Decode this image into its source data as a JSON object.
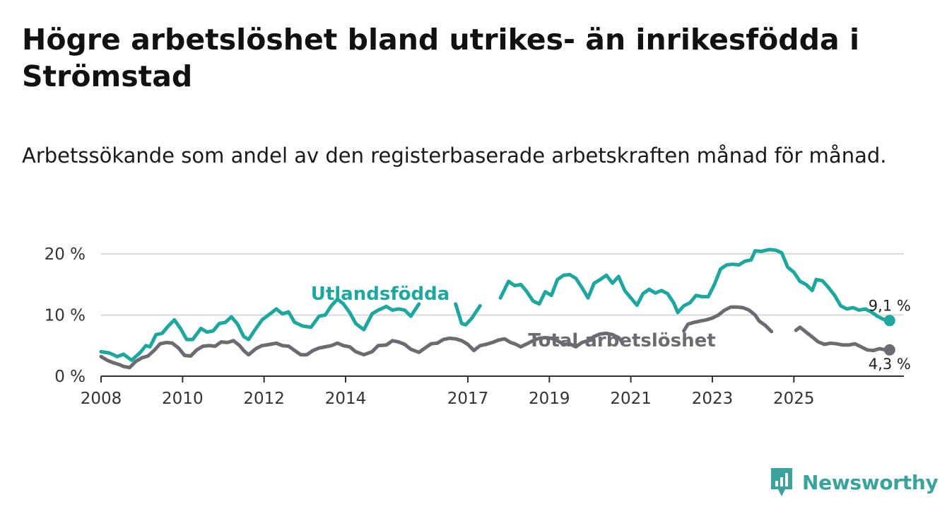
{
  "header": {
    "title": "Högre arbetslöshet bland utrikes- än inrikesfödda i Strömstad",
    "subtitle": "Arbetssökande som andel av den registerbaserade arbetskraften månad för månad."
  },
  "brand": {
    "name": "Newsworthy"
  },
  "colors": {
    "utlandsfodda": "#1ea79c",
    "total": "#6b6b70",
    "grid": "#d9d9d9",
    "axis": "#333333"
  },
  "chart_data": {
    "type": "line",
    "title": "Högre arbetslöshet bland utrikes- än inrikesfödda i Strömstad",
    "subtitle": "Arbetssökande som andel av den registerbaserade arbetskraften månad för månad.",
    "xlabel": "",
    "ylabel": "",
    "xlim": [
      2008,
      2027.7
    ],
    "ylim": [
      0,
      20
    ],
    "y_ticks": [
      0,
      10,
      20
    ],
    "y_tick_labels": [
      "0 %",
      "10 %",
      "20 %"
    ],
    "x_ticks": [
      2008,
      2010,
      2012,
      2014,
      2017,
      2019,
      2021,
      2023,
      2025
    ],
    "x_tick_labels": [
      "2008",
      "2010",
      "2012",
      "2014",
      "2017",
      "2019",
      "2021",
      "2023",
      "2025"
    ],
    "grid": true,
    "series": [
      {
        "name": "Utlandsfödda",
        "label": "Utlandsfödda",
        "end_label": "9,1 %",
        "segments": [
          [
            [
              2008.0,
              4.0
            ],
            [
              2008.2,
              3.8
            ],
            [
              2008.4,
              3.2
            ],
            [
              2008.55,
              3.6
            ],
            [
              2008.75,
              2.6
            ],
            [
              2008.95,
              3.8
            ],
            [
              2009.1,
              5.0
            ],
            [
              2009.2,
              4.8
            ],
            [
              2009.35,
              6.8
            ],
            [
              2009.5,
              7.0
            ],
            [
              2009.65,
              8.2
            ],
            [
              2009.8,
              9.2
            ],
            [
              2009.95,
              7.8
            ],
            [
              2010.1,
              6.0
            ],
            [
              2010.25,
              6.0
            ],
            [
              2010.45,
              7.8
            ],
            [
              2010.6,
              7.2
            ],
            [
              2010.75,
              7.4
            ],
            [
              2010.9,
              8.6
            ],
            [
              2011.05,
              8.8
            ],
            [
              2011.2,
              9.7
            ],
            [
              2011.35,
              8.5
            ],
            [
              2011.5,
              6.5
            ],
            [
              2011.62,
              6.0
            ],
            [
              2011.8,
              7.8
            ],
            [
              2011.95,
              9.2
            ],
            [
              2012.15,
              10.2
            ],
            [
              2012.3,
              11.0
            ],
            [
              2012.45,
              10.2
            ],
            [
              2012.6,
              10.5
            ],
            [
              2012.75,
              8.8
            ],
            [
              2012.95,
              8.2
            ],
            [
              2013.15,
              8.0
            ],
            [
              2013.35,
              9.8
            ],
            [
              2013.5,
              10.0
            ],
            [
              2013.65,
              11.5
            ],
            [
              2013.8,
              12.6
            ],
            [
              2013.95,
              11.8
            ],
            [
              2014.1,
              10.4
            ],
            [
              2014.25,
              8.6
            ],
            [
              2014.45,
              7.6
            ],
            [
              2014.65,
              10.2
            ],
            [
              2014.8,
              10.8
            ],
            [
              2015.0,
              11.4
            ],
            [
              2015.15,
              10.8
            ],
            [
              2015.3,
              11.0
            ],
            [
              2015.45,
              10.8
            ],
            [
              2015.6,
              9.8
            ],
            [
              2015.8,
              11.8
            ]
          ],
          [
            [
              2016.7,
              11.8
            ],
            [
              2016.85,
              8.6
            ],
            [
              2016.95,
              8.4
            ],
            [
              2017.1,
              9.5
            ],
            [
              2017.3,
              11.5
            ]
          ],
          [
            [
              2017.8,
              12.8
            ],
            [
              2018.0,
              15.5
            ],
            [
              2018.15,
              14.8
            ],
            [
              2018.3,
              15.0
            ],
            [
              2018.45,
              13.8
            ],
            [
              2018.6,
              12.3
            ],
            [
              2018.75,
              11.8
            ],
            [
              2018.9,
              13.8
            ],
            [
              2019.05,
              13.2
            ],
            [
              2019.2,
              15.8
            ],
            [
              2019.35,
              16.5
            ],
            [
              2019.5,
              16.6
            ],
            [
              2019.65,
              16.0
            ],
            [
              2019.8,
              14.5
            ],
            [
              2019.95,
              12.8
            ],
            [
              2020.1,
              15.2
            ],
            [
              2020.25,
              15.8
            ],
            [
              2020.4,
              16.5
            ],
            [
              2020.55,
              15.2
            ],
            [
              2020.7,
              16.3
            ],
            [
              2020.85,
              14.0
            ],
            [
              2021.0,
              12.8
            ],
            [
              2021.15,
              11.6
            ],
            [
              2021.3,
              13.5
            ],
            [
              2021.45,
              14.2
            ],
            [
              2021.6,
              13.6
            ],
            [
              2021.75,
              14.0
            ],
            [
              2021.9,
              13.5
            ],
            [
              2022.05,
              12.0
            ],
            [
              2022.15,
              10.4
            ],
            [
              2022.3,
              11.5
            ],
            [
              2022.45,
              12.0
            ],
            [
              2022.6,
              13.2
            ],
            [
              2022.75,
              13.0
            ],
            [
              2022.9,
              13.0
            ],
            [
              2023.05,
              15.0
            ],
            [
              2023.2,
              17.5
            ],
            [
              2023.35,
              18.2
            ],
            [
              2023.5,
              18.3
            ],
            [
              2023.65,
              18.2
            ],
            [
              2023.8,
              18.8
            ],
            [
              2023.95,
              19.0
            ],
            [
              2024.05,
              20.5
            ],
            [
              2024.2,
              20.4
            ],
            [
              2024.4,
              20.7
            ],
            [
              2024.55,
              20.6
            ],
            [
              2024.7,
              20.2
            ],
            [
              2024.85,
              17.8
            ],
            [
              2025.0,
              17.0
            ],
            [
              2025.15,
              15.5
            ],
            [
              2025.3,
              15.0
            ],
            [
              2025.45,
              14.0
            ],
            [
              2025.55,
              15.8
            ],
            [
              2025.7,
              15.6
            ],
            [
              2025.85,
              14.5
            ],
            [
              2026.0,
              13.2
            ],
            [
              2026.15,
              11.5
            ],
            [
              2026.3,
              11.0
            ],
            [
              2026.45,
              11.2
            ],
            [
              2026.6,
              10.8
            ],
            [
              2026.75,
              11.0
            ],
            [
              2026.9,
              10.5
            ],
            [
              2027.05,
              9.8
            ],
            [
              2027.2,
              9.3
            ],
            [
              2027.35,
              9.1
            ]
          ]
        ]
      },
      {
        "name": "Total arbetslöshet",
        "label": "Total arbetslöshet",
        "end_label": "4,3 %",
        "segments": [
          [
            [
              2008.0,
              3.2
            ],
            [
              2008.15,
              2.6
            ],
            [
              2008.3,
              2.2
            ],
            [
              2008.45,
              1.9
            ],
            [
              2008.55,
              1.6
            ],
            [
              2008.7,
              1.4
            ],
            [
              2008.85,
              2.4
            ],
            [
              2009.0,
              3.0
            ],
            [
              2009.15,
              3.3
            ],
            [
              2009.3,
              4.2
            ],
            [
              2009.45,
              5.3
            ],
            [
              2009.6,
              5.5
            ],
            [
              2009.75,
              5.4
            ],
            [
              2009.9,
              4.6
            ],
            [
              2010.05,
              3.4
            ],
            [
              2010.2,
              3.3
            ],
            [
              2010.35,
              4.3
            ],
            [
              2010.5,
              4.9
            ],
            [
              2010.65,
              5.0
            ],
            [
              2010.8,
              4.9
            ],
            [
              2010.95,
              5.6
            ],
            [
              2011.1,
              5.5
            ],
            [
              2011.25,
              5.8
            ],
            [
              2011.4,
              5.0
            ],
            [
              2011.5,
              4.2
            ],
            [
              2011.62,
              3.5
            ],
            [
              2011.8,
              4.5
            ],
            [
              2011.95,
              5.0
            ],
            [
              2012.15,
              5.2
            ],
            [
              2012.3,
              5.4
            ],
            [
              2012.45,
              5.0
            ],
            [
              2012.6,
              4.9
            ],
            [
              2012.75,
              4.2
            ],
            [
              2012.9,
              3.5
            ],
            [
              2013.05,
              3.5
            ],
            [
              2013.2,
              4.2
            ],
            [
              2013.35,
              4.6
            ],
            [
              2013.5,
              4.8
            ],
            [
              2013.65,
              5.0
            ],
            [
              2013.8,
              5.4
            ],
            [
              2013.95,
              5.0
            ],
            [
              2014.1,
              4.8
            ],
            [
              2014.25,
              4.0
            ],
            [
              2014.45,
              3.5
            ],
            [
              2014.65,
              4.0
            ],
            [
              2014.8,
              5.0
            ],
            [
              2015.0,
              5.1
            ],
            [
              2015.15,
              5.8
            ],
            [
              2015.3,
              5.6
            ],
            [
              2015.45,
              5.2
            ],
            [
              2015.6,
              4.4
            ],
            [
              2015.8,
              3.9
            ],
            [
              2015.95,
              4.6
            ],
            [
              2016.1,
              5.3
            ],
            [
              2016.25,
              5.4
            ],
            [
              2016.4,
              6.0
            ],
            [
              2016.55,
              6.2
            ],
            [
              2016.7,
              6.1
            ],
            [
              2016.85,
              5.8
            ],
            [
              2017.0,
              5.2
            ],
            [
              2017.15,
              4.2
            ],
            [
              2017.3,
              5.0
            ],
            [
              2017.45,
              5.2
            ],
            [
              2017.6,
              5.5
            ],
            [
              2017.75,
              5.9
            ],
            [
              2017.9,
              6.1
            ],
            [
              2018.05,
              5.5
            ],
            [
              2018.15,
              5.3
            ],
            [
              2018.3,
              4.8
            ],
            [
              2018.45,
              5.3
            ],
            [
              2018.6,
              5.8
            ],
            [
              2018.75,
              6.2
            ],
            [
              2018.9,
              6.3
            ],
            [
              2019.05,
              6.2
            ],
            [
              2019.2,
              5.8
            ],
            [
              2019.35,
              5.2
            ],
            [
              2019.5,
              5.3
            ],
            [
              2019.65,
              4.8
            ],
            [
              2019.8,
              5.5
            ],
            [
              2019.95,
              5.8
            ],
            [
              2020.1,
              6.5
            ],
            [
              2020.25,
              6.9
            ],
            [
              2020.4,
              7.0
            ],
            [
              2020.55,
              6.8
            ],
            [
              2020.7,
              6.3
            ],
            [
              2020.8,
              5.5
            ]
          ],
          [
            [
              2022.3,
              7.4
            ],
            [
              2022.4,
              8.5
            ],
            [
              2022.55,
              8.8
            ],
            [
              2022.7,
              9.0
            ],
            [
              2022.85,
              9.2
            ],
            [
              2023.0,
              9.5
            ],
            [
              2023.15,
              10.0
            ],
            [
              2023.3,
              10.8
            ],
            [
              2023.45,
              11.3
            ],
            [
              2023.6,
              11.3
            ],
            [
              2023.75,
              11.2
            ],
            [
              2023.9,
              10.8
            ],
            [
              2024.05,
              10.0
            ],
            [
              2024.15,
              9.0
            ],
            [
              2024.3,
              8.3
            ],
            [
              2024.45,
              7.3
            ]
          ],
          [
            [
              2025.05,
              7.5
            ],
            [
              2025.15,
              8.0
            ],
            [
              2025.3,
              7.2
            ],
            [
              2025.45,
              6.4
            ],
            [
              2025.6,
              5.6
            ],
            [
              2025.75,
              5.2
            ],
            [
              2025.9,
              5.4
            ],
            [
              2026.05,
              5.3
            ],
            [
              2026.2,
              5.1
            ],
            [
              2026.35,
              5.1
            ],
            [
              2026.5,
              5.3
            ],
            [
              2026.65,
              4.8
            ],
            [
              2026.8,
              4.3
            ],
            [
              2026.95,
              4.2
            ],
            [
              2027.1,
              4.5
            ],
            [
              2027.25,
              4.3
            ],
            [
              2027.35,
              4.3
            ]
          ]
        ]
      }
    ]
  }
}
